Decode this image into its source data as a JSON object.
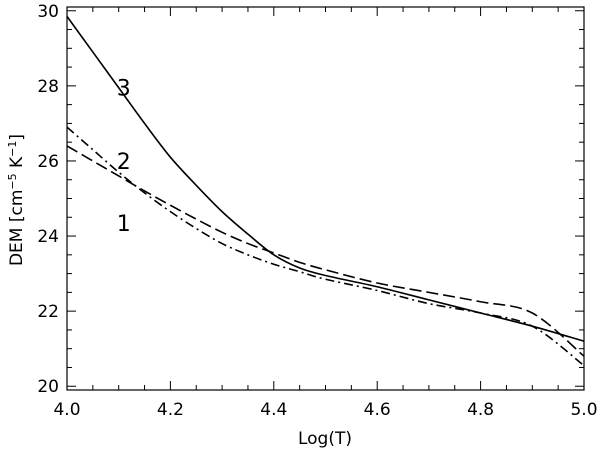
{
  "chart_data": {
    "type": "line",
    "title": "",
    "xlabel": "Log(T)",
    "ylabel": {
      "main": "DEM  [cm",
      "sup1": "−5",
      "mid": " K",
      "sup2": "−1",
      "end": "]"
    },
    "xlim": [
      4.0,
      5.0
    ],
    "ylim": [
      19.9,
      30.1
    ],
    "xticks": [
      4.0,
      4.2,
      4.4,
      4.6,
      4.8,
      5.0
    ],
    "xtick_labels": [
      "4.0",
      "4.2",
      "4.4",
      "4.6",
      "4.8",
      "5.0"
    ],
    "yticks": [
      20,
      22,
      24,
      26,
      28,
      30
    ],
    "ytick_labels": [
      "20",
      "22",
      "24",
      "26",
      "28",
      "30"
    ],
    "grid": false,
    "series": [
      {
        "name": "1",
        "style": "dashed",
        "x": [
          4.0,
          4.05,
          4.1,
          4.15,
          4.2,
          4.25,
          4.3,
          4.35,
          4.4,
          4.45,
          4.5,
          4.6,
          4.7,
          4.8,
          4.9,
          5.0
        ],
        "y": [
          26.4,
          26.0,
          25.6,
          25.2,
          24.82,
          24.45,
          24.1,
          23.8,
          23.55,
          23.3,
          23.1,
          22.75,
          22.5,
          22.25,
          21.95,
          20.8
        ]
      },
      {
        "name": "2",
        "style": "dashdot",
        "x": [
          4.0,
          4.05,
          4.1,
          4.15,
          4.2,
          4.25,
          4.3,
          4.35,
          4.4,
          4.45,
          4.5,
          4.6,
          4.7,
          4.8,
          4.9,
          5.0
        ],
        "y": [
          26.9,
          26.3,
          25.7,
          25.15,
          24.65,
          24.2,
          23.8,
          23.5,
          23.25,
          23.05,
          22.85,
          22.55,
          22.2,
          21.95,
          21.6,
          20.55
        ]
      },
      {
        "name": "3",
        "style": "solid",
        "x": [
          4.0,
          4.05,
          4.1,
          4.15,
          4.2,
          4.25,
          4.3,
          4.35,
          4.4,
          4.45,
          4.5,
          4.6,
          4.7,
          4.8,
          4.9,
          5.0
        ],
        "y": [
          29.85,
          28.9,
          27.95,
          27.0,
          26.1,
          25.35,
          24.65,
          24.05,
          23.5,
          23.15,
          22.95,
          22.65,
          22.3,
          21.95,
          21.6,
          21.2
        ]
      }
    ],
    "curve_labels": [
      {
        "text": "3",
        "x": 4.1,
        "y": 27.95
      },
      {
        "text": "2",
        "x": 4.1,
        "y": 26.0
      },
      {
        "text": "1",
        "x": 4.1,
        "y": 24.35
      }
    ]
  }
}
